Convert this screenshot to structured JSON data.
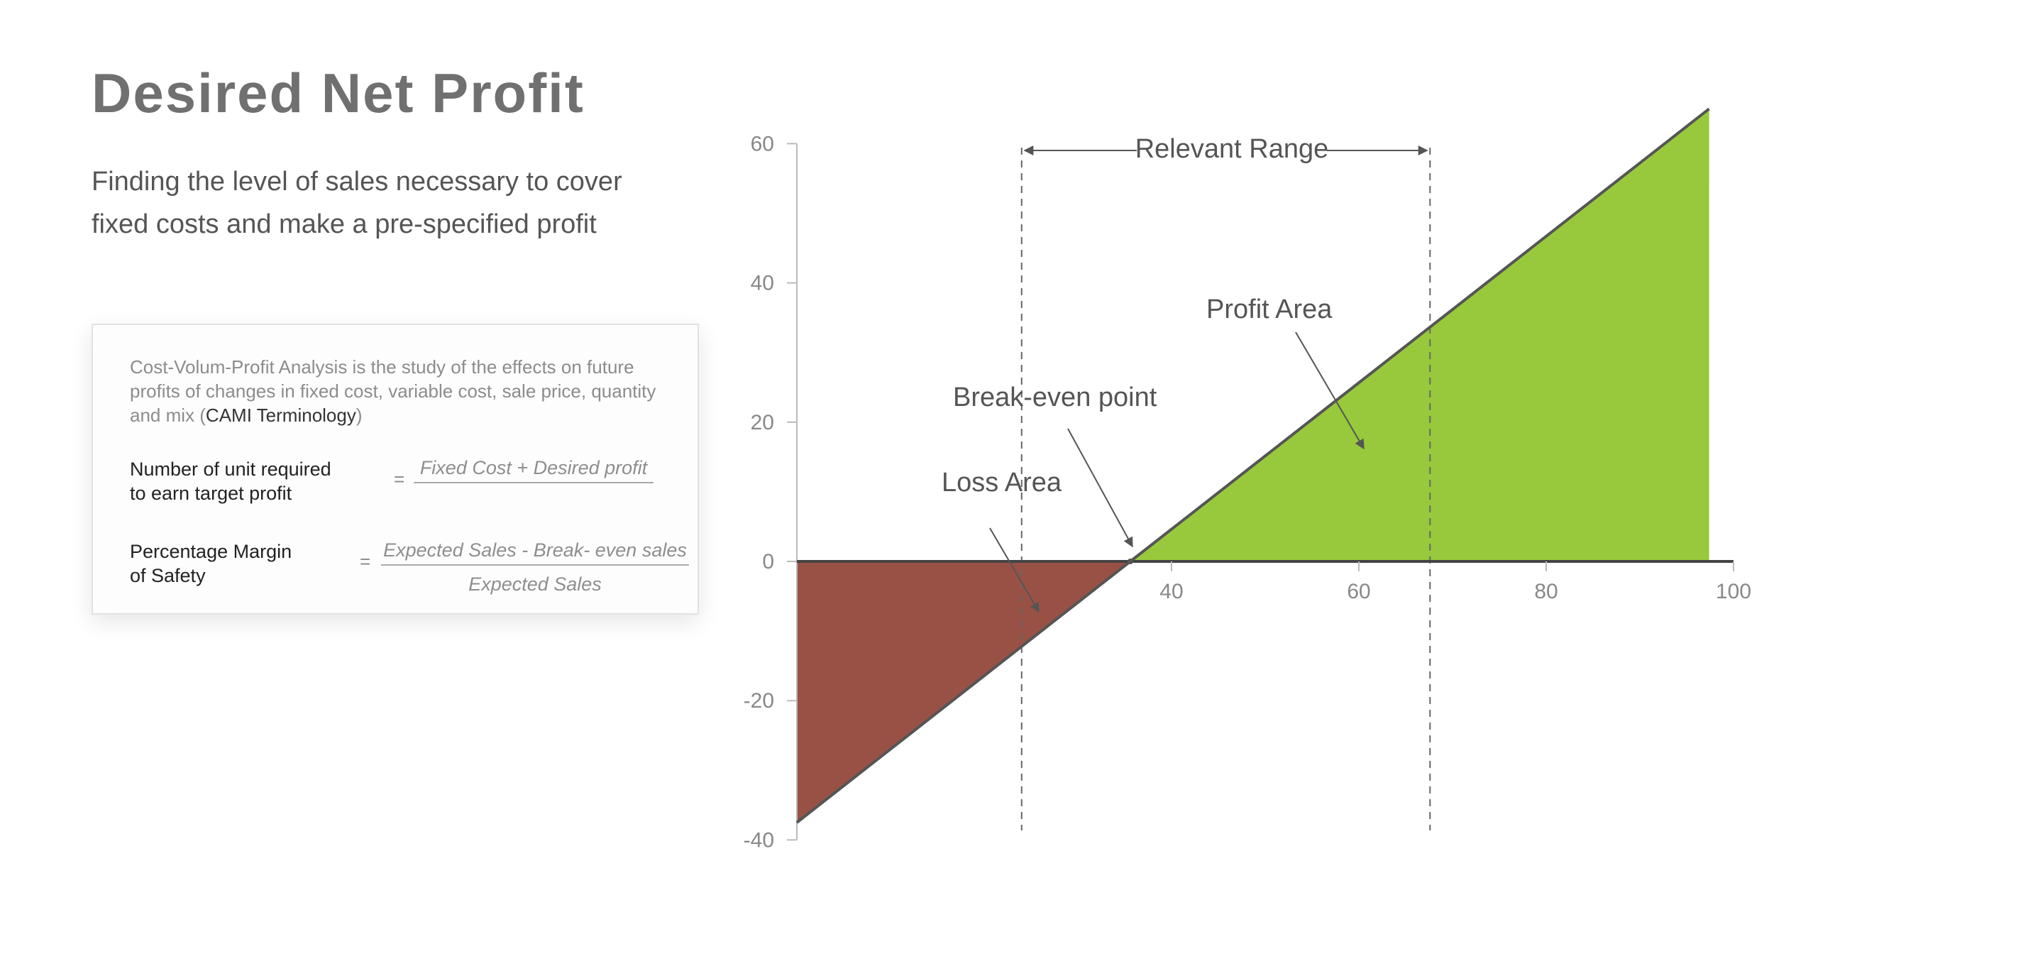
{
  "page": {
    "title": "Desired Net Profit",
    "subtitle": "Finding the level of sales necessary to cover fixed costs and make a pre-specified profit"
  },
  "card": {
    "description_pre": "Cost-Volum-Profit Analysis is the study of the effects on future profits of changes in fixed cost, variable cost, sale price, quantity and mix (",
    "description_highlight": "CAMI Terminology",
    "description_post": ")",
    "formula1": {
      "label_line1": "Number of unit required",
      "label_line2": "to earn target profit",
      "equals": "=",
      "numerator": "Fixed Cost + Desired profit"
    },
    "formula2": {
      "label_line1": "Percentage Margin",
      "label_line2": "of Safety",
      "equals": "=",
      "numerator": "Expected Sales - Break- even sales",
      "denominator": "Expected Sales"
    }
  },
  "chart_data": {
    "type": "area",
    "title": "",
    "xlabel": "",
    "ylabel": "",
    "xlim": [
      0,
      100
    ],
    "ylim": [
      -40,
      60
    ],
    "x_ticks": [
      40,
      60,
      80,
      100
    ],
    "y_ticks": [
      60,
      40,
      20,
      0,
      -20,
      -40
    ],
    "series": [
      {
        "x": [
          0,
          35.6,
          97.4
        ],
        "y": [
          -37.5,
          0,
          65
        ]
      }
    ],
    "break_even_x": 35.6,
    "relevant_range": [
      24,
      67.6
    ],
    "colors": {
      "loss": "#9a5145",
      "profit": "#98c93c",
      "line": "#555555",
      "axis": "#444444"
    },
    "annotations": {
      "relevant_range": "Relevant Range",
      "profit_area": "Profit Area",
      "break_even": "Break-even point",
      "loss_area": "Loss Area"
    }
  }
}
